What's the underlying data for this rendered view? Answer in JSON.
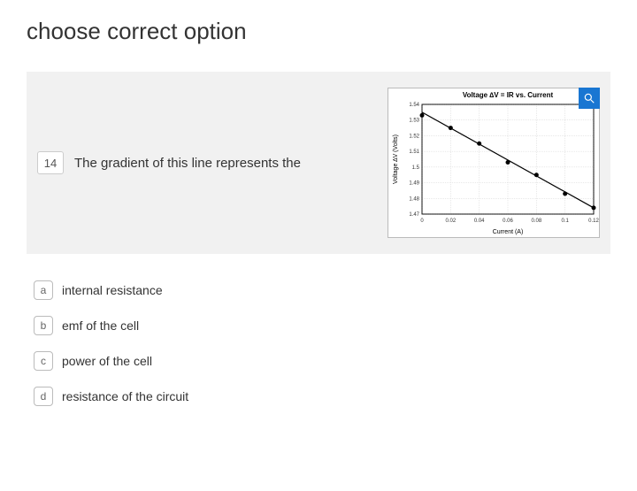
{
  "title": "choose correct option",
  "question": {
    "number": "14",
    "text": "The gradient of this line represents the"
  },
  "chart": {
    "title": "Voltage ∆V = IR vs. Current",
    "title_fontsize": 8,
    "xlabel": "Current (A)",
    "ylabel": "Voltage ∆V (Volts)",
    "label_fontsize": 7,
    "tick_fontsize": 6,
    "x_ticks": [
      "0",
      "0.02",
      "0.04",
      "0.06",
      "0.08",
      "0.1",
      "0.12"
    ],
    "y_ticks": [
      "1.47",
      "1.48",
      "1.49",
      "1.5",
      "1.51",
      "1.52",
      "1.53",
      "1.54"
    ],
    "xlim": [
      0,
      0.12
    ],
    "ylim": [
      1.47,
      1.54
    ],
    "line_points": [
      {
        "x": 0.0,
        "y": 1.535
      },
      {
        "x": 0.12,
        "y": 1.474
      }
    ],
    "data_points": [
      {
        "x": 0.0,
        "y": 1.533
      },
      {
        "x": 0.02,
        "y": 1.525
      },
      {
        "x": 0.04,
        "y": 1.515
      },
      {
        "x": 0.06,
        "y": 1.503
      },
      {
        "x": 0.08,
        "y": 1.495
      },
      {
        "x": 0.1,
        "y": 1.483
      },
      {
        "x": 0.12,
        "y": 1.474
      }
    ],
    "line_color": "#000000",
    "line_width": 1.2,
    "marker_size": 2.5,
    "marker_color": "#000000",
    "grid_color": "#d0d0d0",
    "background_color": "#ffffff"
  },
  "zoom_icon_color": "#ffffff",
  "options": [
    {
      "letter": "a",
      "text": "internal resistance"
    },
    {
      "letter": "b",
      "text": "emf of the cell"
    },
    {
      "letter": "c",
      "text": "power of the cell"
    },
    {
      "letter": "d",
      "text": "resistance of the circuit"
    }
  ]
}
